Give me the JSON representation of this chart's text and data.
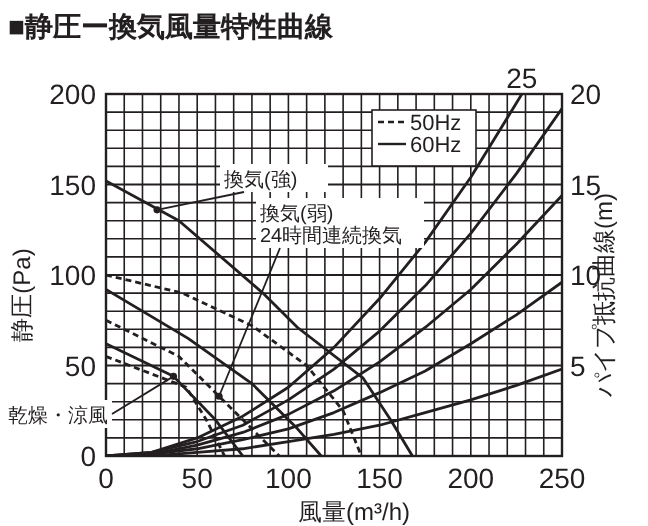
{
  "chart_data": {
    "type": "line",
    "title": "■静圧ー換気風量特性曲線",
    "xlabel": "風量(m³/h)",
    "ylabel": "静圧(Pa)",
    "y2label": "パイプ抵抗曲線(m)",
    "xlim": [
      0,
      250
    ],
    "xticks": [
      0,
      {
        "value": 10,
        "label": null
      },
      {
        "value": 20,
        "label": null
      },
      {
        "value": 30,
        "label": null
      },
      {
        "value": 40,
        "label": null
      },
      50,
      {
        "value": 60,
        "label": null
      },
      {
        "value": 70,
        "label": null
      },
      {
        "value": 80,
        "label": null
      },
      {
        "value": 90,
        "label": null
      },
      100,
      {
        "value": 110,
        "label": null
      },
      {
        "value": 120,
        "label": null
      },
      {
        "value": 130,
        "label": null
      },
      {
        "value": 140,
        "label": null
      },
      150,
      {
        "value": 160,
        "label": null
      },
      {
        "value": 170,
        "label": null
      },
      {
        "value": 180,
        "label": null
      },
      {
        "value": 190,
        "label": null
      },
      200,
      {
        "value": 210,
        "label": null
      },
      {
        "value": 220,
        "label": null
      },
      {
        "value": 230,
        "label": null
      },
      {
        "value": 240,
        "label": null
      },
      250
    ],
    "ylim": [
      0,
      200
    ],
    "yticks": [
      0,
      {
        "value": 10,
        "label": null
      },
      {
        "value": 20,
        "label": null
      },
      {
        "value": 30,
        "label": null
      },
      {
        "value": 40,
        "label": null
      },
      50,
      {
        "value": 60,
        "label": null
      },
      {
        "value": 70,
        "label": null
      },
      {
        "value": 80,
        "label": null
      },
      {
        "value": 90,
        "label": null
      },
      100,
      {
        "value": 110,
        "label": null
      },
      {
        "value": 120,
        "label": null
      },
      {
        "value": 130,
        "label": null
      },
      {
        "value": 140,
        "label": null
      },
      150,
      {
        "value": 160,
        "label": null
      },
      {
        "value": 170,
        "label": null
      },
      {
        "value": 180,
        "label": null
      },
      {
        "value": 190,
        "label": null
      },
      200
    ],
    "y2lim": [
      0,
      20
    ],
    "y2ticks": [
      5,
      10,
      15,
      20
    ],
    "grid": true,
    "legend": "top right",
    "series": [
      {
        "name": "60Hz",
        "color": "#231f20",
        "line_style": "solid",
        "x": [
          0,
          40,
          86,
          105,
          141,
          156,
          168
        ],
        "values": [
          152,
          130,
          90,
          71,
          43,
          20,
          0
        ]
      },
      {
        "name": "50Hz",
        "color": "#231f20",
        "line_style": "dashed",
        "x": [
          0,
          42,
          80,
          110,
          130,
          140
        ],
        "values": [
          100,
          90,
          72,
          50,
          25,
          0
        ]
      },
      {
        "color": "#231f20",
        "line_style": "solid",
        "x": [
          0,
          45,
          80,
          105,
          118
        ],
        "values": [
          92,
          65,
          40,
          15,
          0
        ]
      },
      {
        "color": "#231f20",
        "line_style": "dashed",
        "x": [
          0,
          40,
          62,
          85,
          95
        ],
        "values": [
          75,
          55,
          33,
          10,
          0
        ]
      },
      {
        "color": "#231f20",
        "line_style": "solid",
        "x": [
          0,
          37,
          60,
          75
        ],
        "values": [
          62,
          44,
          20,
          0
        ]
      },
      {
        "color": "#231f20",
        "line_style": "dashed",
        "x": [
          0,
          44,
          55,
          65
        ],
        "values": [
          55,
          38,
          20,
          0
        ]
      },
      {
        "color": "#231f20",
        "line_style": "solid",
        "x": [
          0,
          25,
          50,
          75,
          100,
          125,
          150,
          175,
          200,
          225,
          250
        ],
        "values": [
          0,
          0,
          2,
          4,
          8,
          12,
          17,
          24,
          31,
          39,
          48
        ]
      },
      {
        "color": "#231f20",
        "line_style": "solid",
        "x": [
          0,
          25,
          50,
          75,
          100,
          125,
          150,
          175,
          200,
          225,
          250
        ],
        "values": [
          0,
          1,
          4,
          9,
          15,
          24,
          35,
          47,
          62,
          78,
          96
        ]
      },
      {
        "color": "#231f20",
        "line_style": "solid",
        "x": [
          0,
          25,
          50,
          75,
          100,
          125,
          150,
          175,
          200,
          225,
          250
        ],
        "values": [
          0,
          1,
          6,
          13,
          23,
          36,
          52,
          71,
          92,
          117,
          144
        ]
      },
      {
        "color": "#231f20",
        "line_style": "solid",
        "x": [
          0,
          25,
          50,
          75,
          100,
          125,
          150,
          175,
          200,
          225,
          250
        ],
        "values": [
          0,
          2,
          8,
          17,
          31,
          48,
          69,
          94,
          123,
          156,
          192
        ]
      },
      {
        "color": "#231f20",
        "line_style": "solid",
        "x": [
          0,
          25,
          50,
          75,
          100,
          125,
          150,
          175,
          200,
          225,
          228
        ],
        "values": [
          0,
          2,
          10,
          22,
          38,
          60,
          87,
          118,
          154,
          195,
          200
        ]
      }
    ],
    "annotations": [
      {
        "text": "25",
        "x": 228,
        "y": 200
      },
      {
        "text": "換気(強)",
        "x": 28,
        "y": 136
      },
      {
        "text": "換気(弱)\n24時間連続換気",
        "x": 62,
        "y": 33
      },
      {
        "text": "乾燥・涼風",
        "x": 37,
        "y": 44
      }
    ]
  }
}
